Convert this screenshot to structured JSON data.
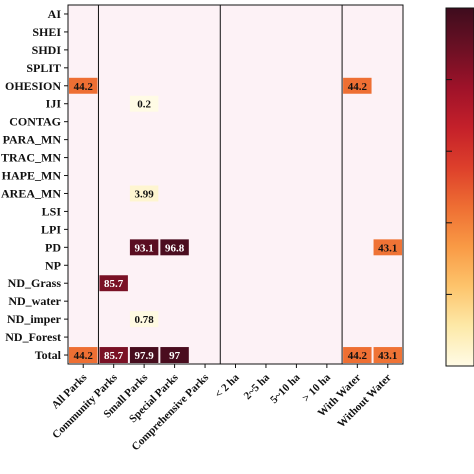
{
  "chart_data": {
    "type": "heatmap",
    "rows": [
      "AI",
      "SHEI",
      "SHDI",
      "SPLIT",
      "COHESION",
      "IJI",
      "CONTAG",
      "PARA_MN",
      "FRAC_MN",
      "SHAPE_MN",
      "AREA_MN",
      "LSI",
      "LPI",
      "PD",
      "NP",
      "PLAND_Grass",
      "PLAND_water",
      "PLAND_imper",
      "PLAND_Forest",
      "Total"
    ],
    "row_labels_visible": [
      "AI",
      "SHEI",
      "SHDI",
      "SPLIT",
      "OHESION",
      "IJI",
      "CONTAG",
      "PARA_MN",
      "TRAC_MN",
      "HAPE_MN",
      "AREA_MN",
      "LSI",
      "LPI",
      "PD",
      "NP",
      "ND_Grass",
      "ND_water",
      "ND_imper",
      "ND_Forest",
      "Total"
    ],
    "columns": [
      "All Parks",
      "Community Parks",
      "Small Parks",
      "Special Parks",
      "Comprehensive Parks",
      "< 2 ha",
      "2~5 ha",
      "5~10 ha",
      "> 10 ha",
      "With Water",
      "Without Water"
    ],
    "cells": [
      {
        "row": 4,
        "col": 0,
        "value": 44.2
      },
      {
        "row": 4,
        "col": 9,
        "value": 44.2
      },
      {
        "row": 5,
        "col": 2,
        "value": 0.2
      },
      {
        "row": 10,
        "col": 2,
        "value": 3.99
      },
      {
        "row": 13,
        "col": 2,
        "value": 93.1
      },
      {
        "row": 13,
        "col": 3,
        "value": 96.8
      },
      {
        "row": 13,
        "col": 10,
        "value": 43.1
      },
      {
        "row": 15,
        "col": 1,
        "value": 85.7
      },
      {
        "row": 17,
        "col": 2,
        "value": 0.78
      },
      {
        "row": 19,
        "col": 0,
        "value": 44.2
      },
      {
        "row": 19,
        "col": 1,
        "value": 85.7
      },
      {
        "row": 19,
        "col": 2,
        "value": 97.9
      },
      {
        "row": 19,
        "col": 3,
        "value": 97
      },
      {
        "row": 19,
        "col": 9,
        "value": 44.2
      },
      {
        "row": 19,
        "col": 10,
        "value": 43.1
      }
    ],
    "color_range": [
      0,
      100
    ],
    "colors": {
      "background": "#fdf2f6",
      "scale": [
        "#fffbe6",
        "#fde9a8",
        "#fdc46c",
        "#f99a45",
        "#ee6e33",
        "#dd3f2b",
        "#c4202a",
        "#9e1229",
        "#6b1024",
        "#3e0c1d"
      ]
    },
    "group_separators_after_col": [
      0,
      4,
      8
    ]
  }
}
